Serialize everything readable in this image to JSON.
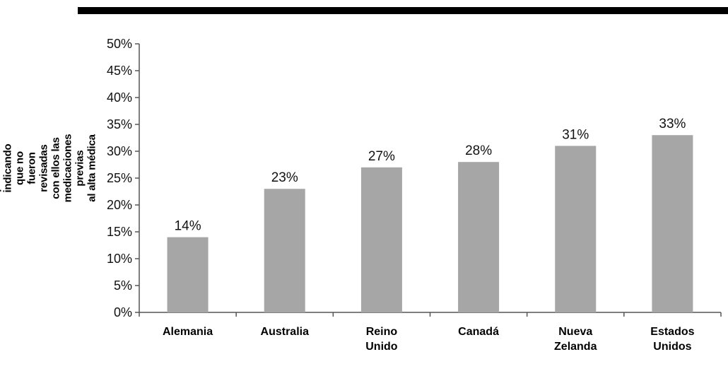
{
  "chart_data": {
    "type": "bar",
    "categories": [
      [
        "Alemania"
      ],
      [
        "Australia"
      ],
      [
        "Reino",
        "Unido"
      ],
      [
        "Canadá"
      ],
      [
        "Nueva",
        "Zelanda"
      ],
      [
        "Estados",
        "Unidos"
      ]
    ],
    "values": [
      14,
      23,
      27,
      28,
      31,
      33
    ],
    "data_labels": [
      "14%",
      "23%",
      "27%",
      "28%",
      "31%",
      "33%"
    ],
    "ylabel_lines": [
      "% de pacientes indicando que no fueron",
      "revisadas con ellos las medicaciones previas",
      "al alta médica"
    ],
    "ylim": [
      0,
      50
    ],
    "yticks": [
      "0%",
      "5%",
      "10%",
      "15%",
      "20%",
      "25%",
      "30%",
      "35%",
      "40%",
      "45%",
      "50%"
    ],
    "grid": false,
    "bar_color": "#a6a6a6",
    "axis_color": "#555555"
  }
}
